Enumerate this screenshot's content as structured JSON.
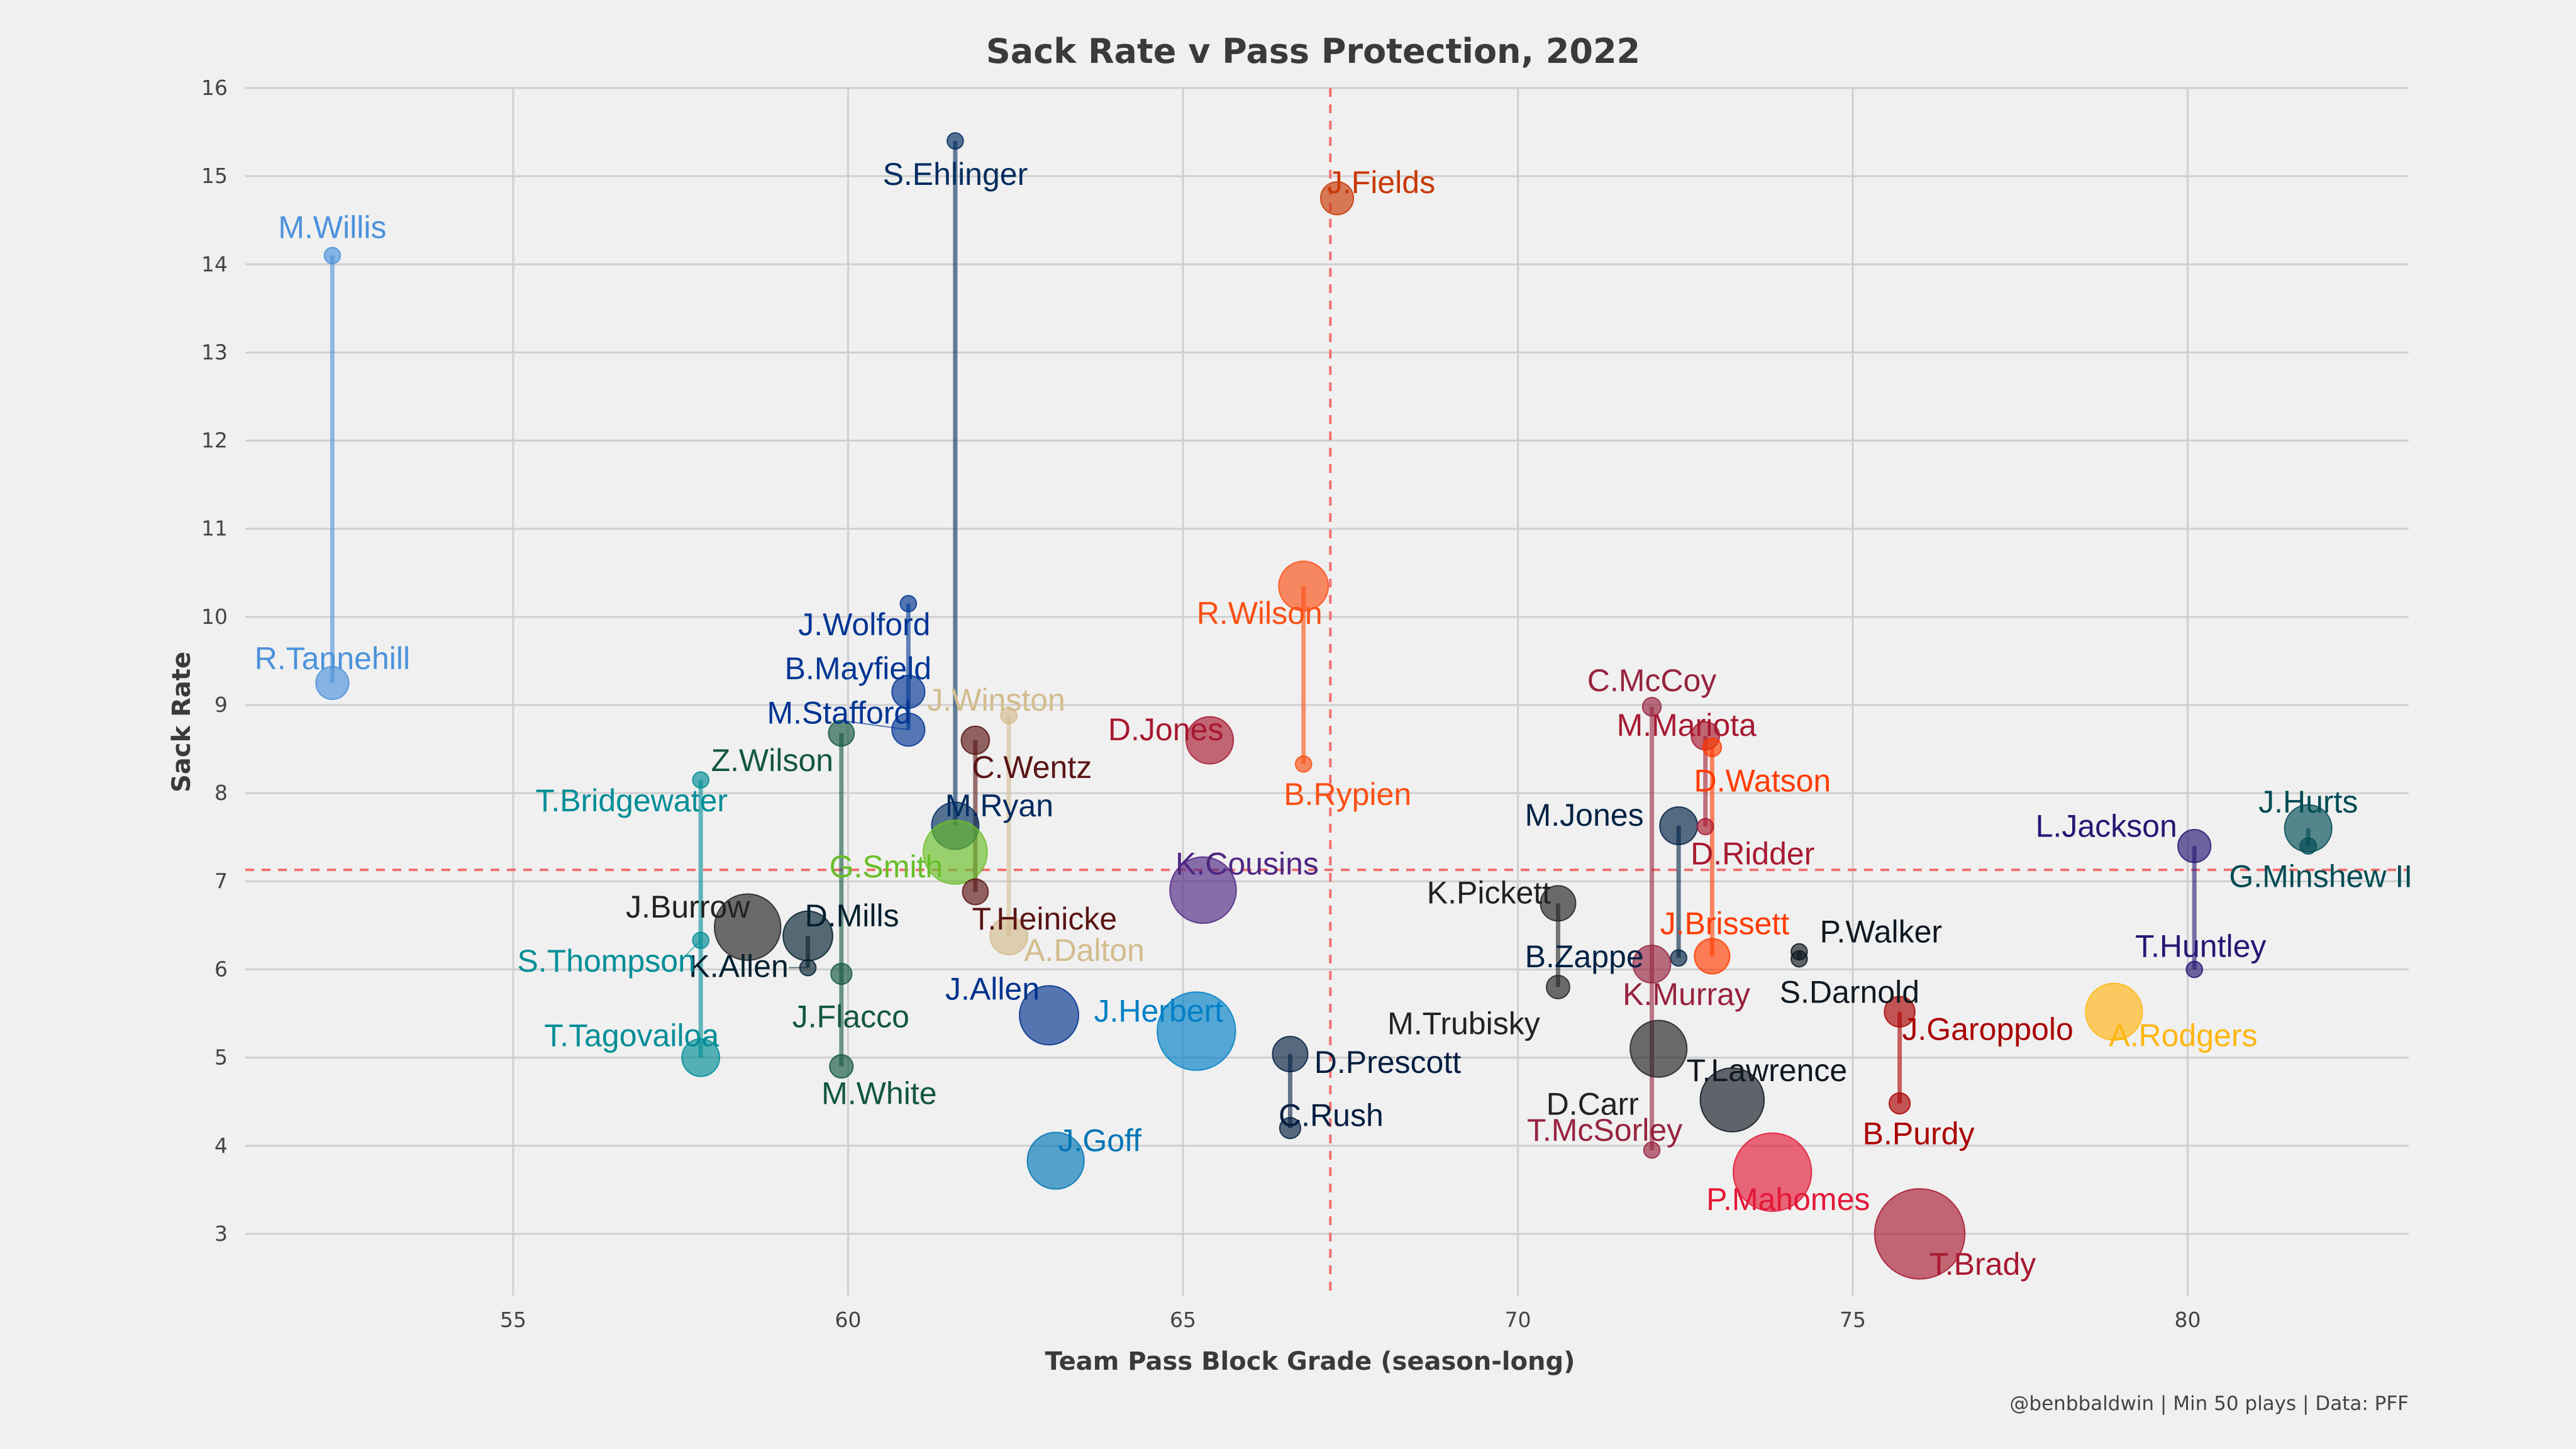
{
  "chart_data": {
    "type": "scatter",
    "title": "Sack Rate v Pass Protection, 2022",
    "xlabel": "Team Pass Block Grade (season-long)",
    "ylabel": "Sack Rate",
    "xlim": [
      51,
      83.3
    ],
    "ylim": [
      2.3,
      16
    ],
    "xticks": [
      "55",
      "60",
      "65",
      "70",
      "75",
      "80"
    ],
    "yticks": [
      "3",
      "4",
      "5",
      "6",
      "7",
      "8",
      "9",
      "10",
      "11",
      "12",
      "13",
      "14",
      "15",
      "16"
    ],
    "ref_x": 67.2,
    "ref_y": 7.13,
    "credit": "@benbbaldwin | Min 50 plays | Data: PFF",
    "points": [
      {
        "name": "M.Willis",
        "x": 52.3,
        "y": 14.1,
        "size": 0.2,
        "color": "#4b92db"
      },
      {
        "name": "R.Tannehill",
        "x": 52.3,
        "y": 9.25,
        "size": 0.9,
        "color": "#4b92db"
      },
      {
        "name": "S.Ehlinger",
        "x": 61.6,
        "y": 15.4,
        "size": 0.2,
        "color": "#002c5f"
      },
      {
        "name": "J.Fields",
        "x": 67.3,
        "y": 14.75,
        "size": 0.9,
        "color": "#c83803"
      },
      {
        "name": "R.Wilson",
        "x": 66.8,
        "y": 10.35,
        "size": 1.6,
        "color": "#fb4f14"
      },
      {
        "name": "B.Rypien",
        "x": 66.8,
        "y": 8.33,
        "size": 0.2,
        "color": "#fb4f14"
      },
      {
        "name": "J.Wolford",
        "x": 60.9,
        "y": 10.15,
        "size": 0.2,
        "color": "#003594"
      },
      {
        "name": "B.Mayfield",
        "x": 60.9,
        "y": 9.15,
        "size": 0.9,
        "color": "#003594"
      },
      {
        "name": "M.Stafford",
        "x": 60.9,
        "y": 8.72,
        "size": 0.9,
        "color": "#003594"
      },
      {
        "name": "J.Winston",
        "x": 62.4,
        "y": 8.88,
        "size": 0.2,
        "color": "#d3bc8d"
      },
      {
        "name": "D.Jones",
        "x": 65.4,
        "y": 8.6,
        "size": 1.5,
        "color": "#a71930"
      },
      {
        "name": "C.Wentz",
        "x": 61.9,
        "y": 8.6,
        "size": 0.7,
        "color": "#5a1414"
      },
      {
        "name": "Z.Wilson",
        "x": 59.9,
        "y": 8.68,
        "size": 0.6,
        "color": "#125740"
      },
      {
        "name": "T.Bridgewater",
        "x": 57.8,
        "y": 8.15,
        "size": 0.2,
        "color": "#008e97"
      },
      {
        "name": "M.Ryan",
        "x": 61.6,
        "y": 7.63,
        "size": 1.5,
        "color": "#002c5f"
      },
      {
        "name": "G.Smith",
        "x": 61.6,
        "y": 7.33,
        "size": 2.2,
        "color": "#69be28"
      },
      {
        "name": "T.Heinicke",
        "x": 61.9,
        "y": 6.88,
        "size": 0.6,
        "color": "#5a1414"
      },
      {
        "name": "K.Cousins",
        "x": 65.3,
        "y": 6.9,
        "size": 2.3,
        "color": "#4f2683"
      },
      {
        "name": "A.Dalton",
        "x": 62.4,
        "y": 6.38,
        "size": 1.1,
        "color": "#d3bc8d"
      },
      {
        "name": "J.Burrow",
        "x": 58.5,
        "y": 6.48,
        "size": 2.3,
        "color": "#222222"
      },
      {
        "name": "D.Mills",
        "x": 59.4,
        "y": 6.38,
        "size": 1.6,
        "color": "#03202f"
      },
      {
        "name": "K.Allen",
        "x": 59.4,
        "y": 6.02,
        "size": 0.2,
        "color": "#03202f"
      },
      {
        "name": "S.Thompson",
        "x": 57.8,
        "y": 6.33,
        "size": 0.2,
        "color": "#008e97"
      },
      {
        "name": "J.Flacco",
        "x": 59.9,
        "y": 5.95,
        "size": 0.4,
        "color": "#125740"
      },
      {
        "name": "T.Tagovailoa",
        "x": 57.8,
        "y": 5.0,
        "size": 1.1,
        "color": "#008e97"
      },
      {
        "name": "M.White",
        "x": 59.9,
        "y": 4.9,
        "size": 0.5,
        "color": "#125740"
      },
      {
        "name": "J.Allen",
        "x": 63.0,
        "y": 5.48,
        "size": 2.0,
        "color": "#00338d"
      },
      {
        "name": "J.Herbert",
        "x": 65.2,
        "y": 5.3,
        "size": 2.8,
        "color": "#0080c6"
      },
      {
        "name": "J.Goff",
        "x": 63.1,
        "y": 3.83,
        "size": 1.9,
        "color": "#0076b6"
      },
      {
        "name": "D.Prescott",
        "x": 66.6,
        "y": 5.04,
        "size": 1.0,
        "color": "#041e42"
      },
      {
        "name": "C.Rush",
        "x": 66.6,
        "y": 4.2,
        "size": 0.4,
        "color": "#041e42"
      },
      {
        "name": "C.McCoy",
        "x": 72.0,
        "y": 8.98,
        "size": 0.3,
        "color": "#97233f"
      },
      {
        "name": "M.Mariota",
        "x": 72.8,
        "y": 8.65,
        "size": 0.7,
        "color": "#a71930"
      },
      {
        "name": "D.Watson",
        "x": 72.9,
        "y": 8.52,
        "size": 0.3,
        "color": "#ff3c00"
      },
      {
        "name": "M.Jones",
        "x": 72.4,
        "y": 7.63,
        "size": 1.1,
        "color": "#002244"
      },
      {
        "name": "D.Ridder",
        "x": 72.8,
        "y": 7.62,
        "size": 0.2,
        "color": "#a71930"
      },
      {
        "name": "K.Pickett",
        "x": 70.6,
        "y": 6.75,
        "size": 1.0,
        "color": "#222222"
      },
      {
        "name": "J.Brissett",
        "x": 72.9,
        "y": 6.15,
        "size": 1.0,
        "color": "#ff3c00"
      },
      {
        "name": "B.Zappe",
        "x": 72.4,
        "y": 6.13,
        "size": 0.2,
        "color": "#002244"
      },
      {
        "name": "K.Murray",
        "x": 72.0,
        "y": 6.06,
        "size": 1.1,
        "color": "#97233f"
      },
      {
        "name": "M.Trubisky",
        "x": 70.6,
        "y": 5.8,
        "size": 0.5,
        "color": "#222222"
      },
      {
        "name": "P.Walker",
        "x": 74.2,
        "y": 6.2,
        "size": 0.2,
        "color": "#101820"
      },
      {
        "name": "S.Darnold",
        "x": 74.2,
        "y": 6.12,
        "size": 0.2,
        "color": "#101820"
      },
      {
        "name": "D.Carr",
        "x": 72.1,
        "y": 5.1,
        "size": 1.9,
        "color": "#222222"
      },
      {
        "name": "T.Lawrence",
        "x": 73.2,
        "y": 4.52,
        "size": 2.2,
        "color": "#101820"
      },
      {
        "name": "T.McSorley",
        "x": 72.0,
        "y": 3.95,
        "size": 0.2,
        "color": "#97233f"
      },
      {
        "name": "P.Mahomes",
        "x": 73.8,
        "y": 3.7,
        "size": 2.8,
        "color": "#e31837"
      },
      {
        "name": "T.Brady",
        "x": 76.0,
        "y": 3.0,
        "size": 3.3,
        "color": "#a71930"
      },
      {
        "name": "J.Garoppolo",
        "x": 75.7,
        "y": 5.52,
        "size": 0.8,
        "color": "#aa0000"
      },
      {
        "name": "B.Purdy",
        "x": 75.7,
        "y": 4.48,
        "size": 0.4,
        "color": "#aa0000"
      },
      {
        "name": "A.Rodgers",
        "x": 78.9,
        "y": 5.52,
        "size": 1.9,
        "color": "#ffb612"
      },
      {
        "name": "L.Jackson",
        "x": 80.1,
        "y": 7.4,
        "size": 0.9,
        "color": "#241773"
      },
      {
        "name": "T.Huntley",
        "x": 80.1,
        "y": 6.0,
        "size": 0.2,
        "color": "#241773"
      },
      {
        "name": "J.Hurts",
        "x": 81.8,
        "y": 7.6,
        "size": 1.5,
        "color": "#004c54"
      },
      {
        "name": "G.Minshew II",
        "x": 81.8,
        "y": 7.4,
        "size": 0.2,
        "color": "#004c54"
      }
    ],
    "connections": [
      [
        "M.Willis",
        "R.Tannehill"
      ],
      [
        "S.Ehlinger",
        "M.Ryan"
      ],
      [
        "R.Wilson",
        "B.Rypien"
      ],
      [
        "J.Wolford",
        "B.Mayfield"
      ],
      [
        "B.Mayfield",
        "M.Stafford"
      ],
      [
        "J.Winston",
        "A.Dalton"
      ],
      [
        "C.Wentz",
        "T.Heinicke"
      ],
      [
        "Z.Wilson",
        "M.White"
      ],
      [
        "T.Bridgewater",
        "T.Tagovailoa"
      ],
      [
        "D.Mills",
        "K.Allen"
      ],
      [
        "D.Prescott",
        "C.Rush"
      ],
      [
        "C.McCoy",
        "T.McSorley"
      ],
      [
        "D.Watson",
        "J.Brissett"
      ],
      [
        "M.Jones",
        "B.Zappe"
      ],
      [
        "K.Pickett",
        "M.Trubisky"
      ],
      [
        "P.Walker",
        "S.Darnold"
      ],
      [
        "J.Garoppolo",
        "B.Purdy"
      ],
      [
        "L.Jackson",
        "T.Huntley"
      ],
      [
        "J.Hurts",
        "G.Minshew II"
      ],
      [
        "M.Mariota",
        "D.Ridder"
      ]
    ]
  }
}
